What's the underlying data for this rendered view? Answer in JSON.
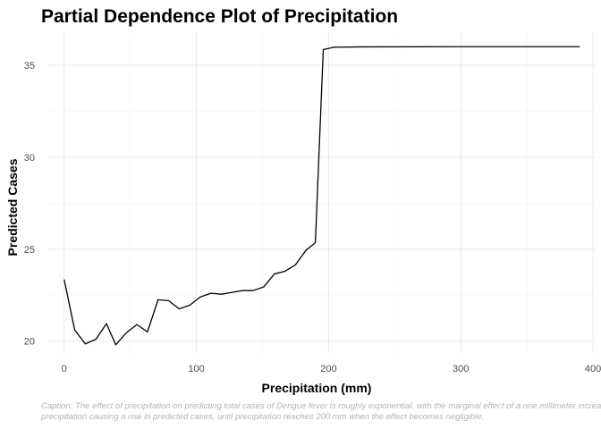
{
  "chart_data": {
    "type": "line",
    "title": "Partial Dependence Plot of Precipitation",
    "xlabel": "Precipitation (mm)",
    "ylabel": "Predicted Cases",
    "xlim": [
      -12,
      402
    ],
    "ylim": [
      19.4,
      36.8
    ],
    "x_ticks": [
      0,
      100,
      200,
      300,
      400
    ],
    "y_ticks": [
      20,
      25,
      30,
      35
    ],
    "grid": true,
    "caption_lines": [
      "Caption: The effect of precipitation on predicting total cases of Dengue fever is roughly exponential, with the marginal effect of a one millimeter increase in",
      " precipitation causing a rise in predicted cases, until precipitation reaches 200 mm when the effect becomes negligible."
    ],
    "series": [
      {
        "x": [
          0,
          8,
          16,
          24,
          32,
          39,
          47,
          55,
          63,
          71,
          79,
          87,
          95,
          103,
          111,
          119,
          127,
          135,
          143,
          151,
          159,
          167,
          175,
          183,
          190,
          196,
          204,
          225,
          300,
          390
        ],
        "y": [
          23.35,
          20.6,
          19.85,
          20.1,
          20.95,
          19.8,
          20.45,
          20.9,
          20.5,
          22.25,
          22.2,
          21.75,
          21.95,
          22.4,
          22.6,
          22.55,
          22.65,
          22.75,
          22.75,
          22.95,
          23.65,
          23.8,
          24.15,
          24.95,
          25.35,
          35.85,
          35.98,
          36.0,
          36.01,
          36.01
        ]
      }
    ]
  }
}
